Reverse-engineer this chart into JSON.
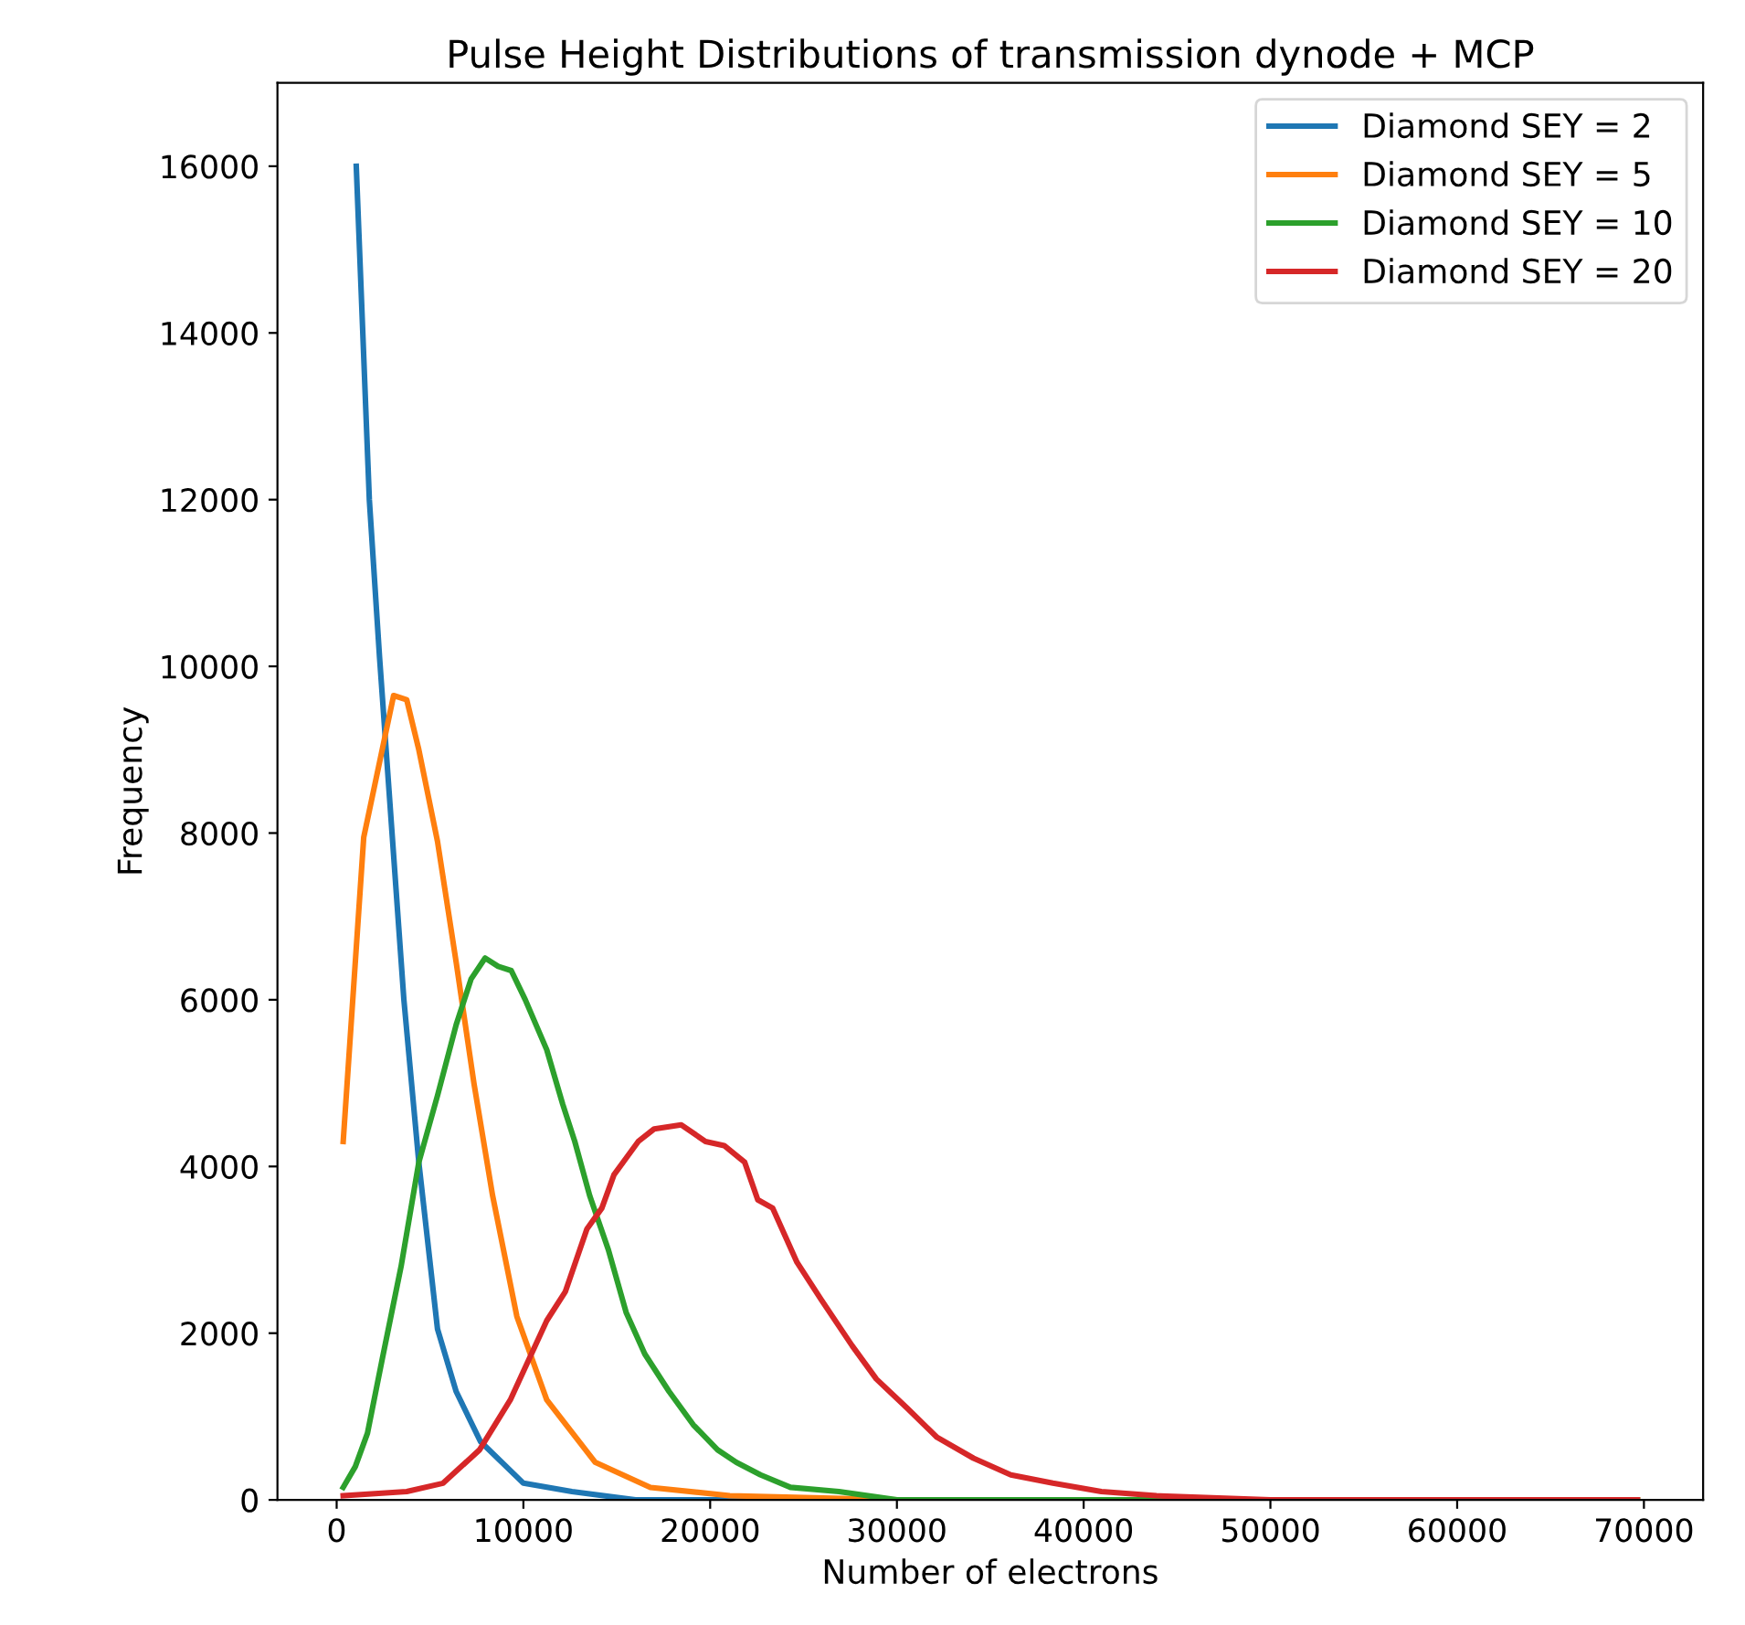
{
  "chart_data": {
    "type": "line",
    "title": "Pulse Height Distributions of transmission dynode + MCP",
    "xlabel": "Number of electrons",
    "ylabel": "Frequency",
    "xlim": [
      -3170,
      73170
    ],
    "ylim": [
      0,
      17000
    ],
    "xticks": [
      0,
      10000,
      20000,
      30000,
      40000,
      50000,
      60000,
      70000
    ],
    "yticks": [
      0,
      2000,
      4000,
      6000,
      8000,
      10000,
      12000,
      14000,
      16000
    ],
    "grid": false,
    "legend": "top right",
    "marker": "none",
    "line_style": "solid",
    "series": [
      {
        "name": "Diamond SEY = 2",
        "color": "#1f77b4",
        "x": [
          1050,
          1750,
          2300,
          2950,
          3600,
          4400,
          5400,
          6400,
          7700,
          10000,
          12600,
          16000,
          25000,
          40000
        ],
        "values": [
          16000,
          12000,
          10100,
          8050,
          6000,
          4050,
          2050,
          1300,
          700,
          200,
          100,
          0,
          0,
          0
        ]
      },
      {
        "name": "Diamond SEY = 5",
        "color": "#ff7f0e",
        "x": [
          350,
          1450,
          3050,
          3750,
          4400,
          5400,
          6400,
          7350,
          8350,
          9650,
          11250,
          13850,
          16800,
          21050,
          30000,
          45000,
          69650
        ],
        "values": [
          4300,
          7950,
          9650,
          9600,
          9000,
          7900,
          6450,
          5000,
          3650,
          2200,
          1200,
          450,
          150,
          50,
          0,
          0,
          0
        ]
      },
      {
        "name": "Diamond SEY = 10",
        "color": "#2ca02c",
        "x": [
          350,
          1000,
          1650,
          2450,
          3450,
          4400,
          5400,
          6400,
          7200,
          7950,
          8650,
          9350,
          10100,
          11250,
          12100,
          12750,
          13550,
          14550,
          15500,
          16500,
          17800,
          19100,
          20400,
          21400,
          22700,
          24300,
          26900,
          30000,
          40000,
          55000,
          69650
        ],
        "values": [
          150,
          400,
          800,
          1700,
          2800,
          4050,
          4850,
          5700,
          6250,
          6500,
          6400,
          6350,
          6000,
          5400,
          4750,
          4300,
          3650,
          3000,
          2250,
          1750,
          1300,
          900,
          600,
          450,
          300,
          150,
          100,
          0,
          0,
          0,
          0
        ]
      },
      {
        "name": "Diamond SEY = 20",
        "color": "#d62728",
        "x": [
          350,
          3750,
          5700,
          7650,
          9300,
          11250,
          12250,
          13400,
          14200,
          14850,
          16150,
          17000,
          18450,
          19750,
          20750,
          21850,
          22550,
          23350,
          24650,
          25950,
          27600,
          28900,
          30550,
          32150,
          34100,
          36100,
          38350,
          40950,
          43900,
          50000,
          60000,
          69650
        ],
        "values": [
          50,
          100,
          200,
          600,
          1200,
          2150,
          2500,
          3250,
          3500,
          3900,
          4300,
          4450,
          4500,
          4300,
          4250,
          4050,
          3600,
          3500,
          2850,
          2400,
          1850,
          1450,
          1100,
          750,
          500,
          300,
          200,
          100,
          50,
          0,
          0,
          0
        ]
      }
    ]
  }
}
